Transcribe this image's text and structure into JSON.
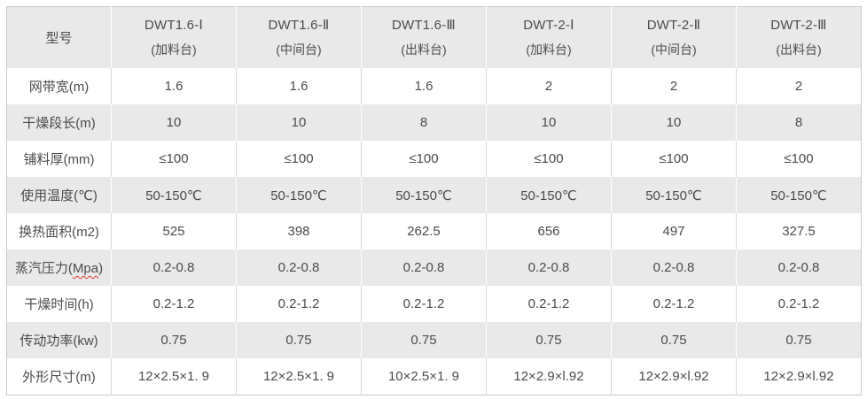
{
  "colors": {
    "stripe_background": "#e9e9e9",
    "table_border": "#c9c9c9",
    "cell_divider": "#d8d8d8",
    "text": "#4b4b4b",
    "spellcheck_underline": "#e0392f"
  },
  "table": {
    "corner_label": "型号",
    "columns": [
      {
        "model": "DWT1.6-Ⅰ",
        "station": "(加料台)"
      },
      {
        "model": "DWT1.6-Ⅱ",
        "station": "(中间台)"
      },
      {
        "model": "DWT1.6-Ⅲ",
        "station": "(出料台)"
      },
      {
        "model": "DWT-2-Ⅰ",
        "station": "(加料台)"
      },
      {
        "model": "DWT-2-Ⅱ",
        "station": "(中间台)"
      },
      {
        "model": "DWT-2-Ⅲ",
        "station": "(出料台)"
      }
    ],
    "rows": [
      {
        "label": "网带宽(m)",
        "values": [
          "1.6",
          "1.6",
          "1.6",
          "2",
          "2",
          "2"
        ]
      },
      {
        "label": "干燥段长(m)",
        "values": [
          "10",
          "10",
          "8",
          "10",
          "10",
          "8"
        ]
      },
      {
        "label": "铺料厚(mm)",
        "values": [
          "≤100",
          "≤100",
          "≤100",
          "≤100",
          "≤100",
          "≤100"
        ]
      },
      {
        "label": "使用温度(℃)",
        "values": [
          "50-150℃",
          "50-150℃",
          "50-150℃",
          "50-150℃",
          "50-150℃",
          "50-150℃"
        ]
      },
      {
        "label": "换热面积(m2)",
        "values": [
          "525",
          "398",
          "262.5",
          "656",
          "497",
          "327.5"
        ]
      },
      {
        "label_prefix": "蒸汽压力(",
        "label_word": "Mpa",
        "label_suffix": ")",
        "values": [
          "0.2-0.8",
          "0.2-0.8",
          "0.2-0.8",
          "0.2-0.8",
          "0.2-0.8",
          "0.2-0.8"
        ]
      },
      {
        "label": "干燥时间(h)",
        "values": [
          "0.2-1.2",
          "0.2-1.2",
          "0.2-1.2",
          "0.2-1.2",
          "0.2-1.2",
          "0.2-1.2"
        ]
      },
      {
        "label": "传动功率(kw)",
        "values": [
          "0.75",
          "0.75",
          "0.75",
          "0.75",
          "0.75",
          "0.75"
        ]
      },
      {
        "label": "外形尺寸(m)",
        "values": [
          "12×2.5×1. 9",
          "12×2.5×1. 9",
          "10×2.5×1. 9",
          "12×2.9×l.92",
          "12×2.9×l.92",
          "12×2.9×l.92"
        ]
      }
    ]
  }
}
